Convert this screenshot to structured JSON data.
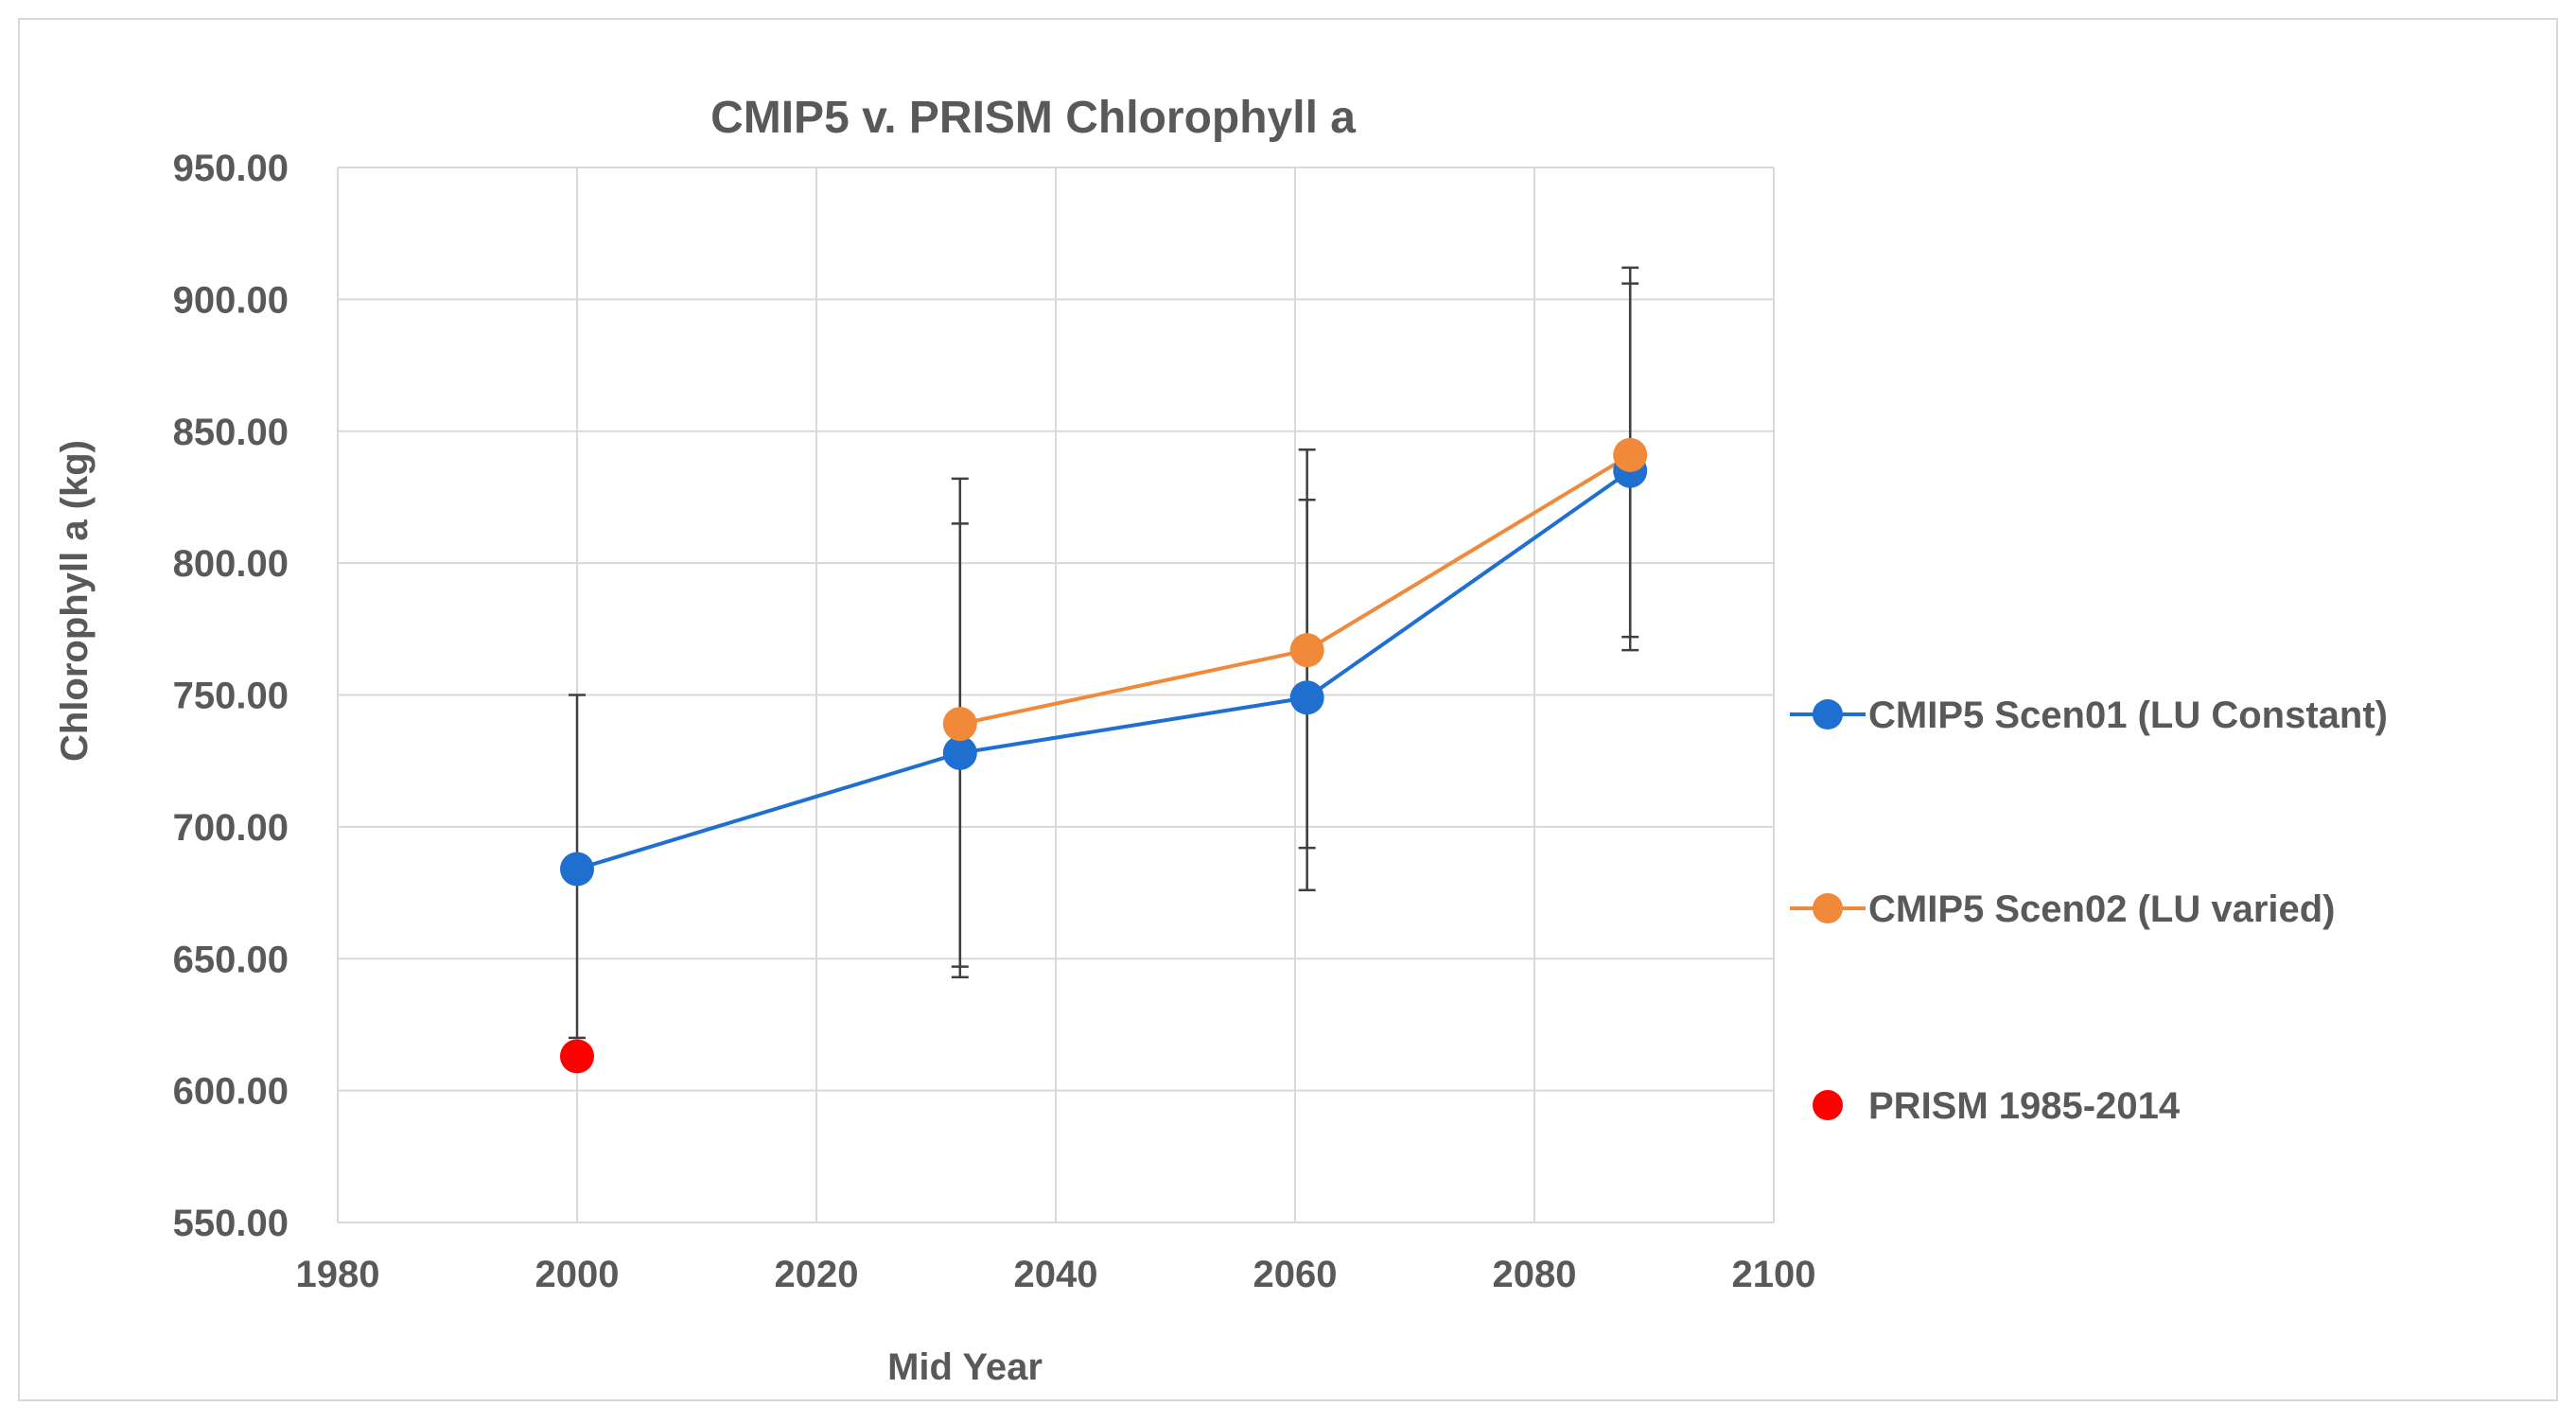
{
  "chart_data": {
    "type": "scatter",
    "title": "CMIP5 v. PRISM Chlorophyll a",
    "xlabel": "Mid Year",
    "ylabel": "Chlorophyll a (kg)",
    "xlim": [
      1980,
      2100
    ],
    "ylim": [
      550,
      950
    ],
    "xticks": [
      1980,
      2000,
      2020,
      2040,
      2060,
      2080,
      2100
    ],
    "xtick_labels": [
      "1980",
      "2000",
      "2020",
      "2040",
      "2060",
      "2080",
      "2100"
    ],
    "yticks": [
      550,
      600,
      650,
      700,
      750,
      800,
      850,
      900,
      950
    ],
    "ytick_labels": [
      "550.00",
      "600.00",
      "650.00",
      "700.00",
      "750.00",
      "800.00",
      "850.00",
      "900.00",
      "950.00"
    ],
    "grid": true,
    "legend_position": "right",
    "series": [
      {
        "name": "CMIP5 Scen01 (LU Constant)",
        "color": "#1f6fd1",
        "line": true,
        "points": [
          {
            "x": 2000,
            "y": 684,
            "err_low": 620,
            "err_high": 750
          },
          {
            "x": 2032,
            "y": 728,
            "err_low": 643,
            "err_high": 815
          },
          {
            "x": 2061,
            "y": 749,
            "err_low": 676,
            "err_high": 824
          },
          {
            "x": 2088,
            "y": 835,
            "err_low": 767,
            "err_high": 906
          }
        ]
      },
      {
        "name": "CMIP5 Scen02 (LU varied)",
        "color": "#f0893a",
        "line": true,
        "points": [
          {
            "x": 2032,
            "y": 739,
            "err_low": 647,
            "err_high": 832
          },
          {
            "x": 2061,
            "y": 767,
            "err_low": 692,
            "err_high": 843
          },
          {
            "x": 2088,
            "y": 841,
            "err_low": 772,
            "err_high": 912
          }
        ]
      },
      {
        "name": "PRISM 1985-2014",
        "color": "#ff0000",
        "line": false,
        "points": [
          {
            "x": 2000,
            "y": 613
          }
        ]
      }
    ]
  }
}
